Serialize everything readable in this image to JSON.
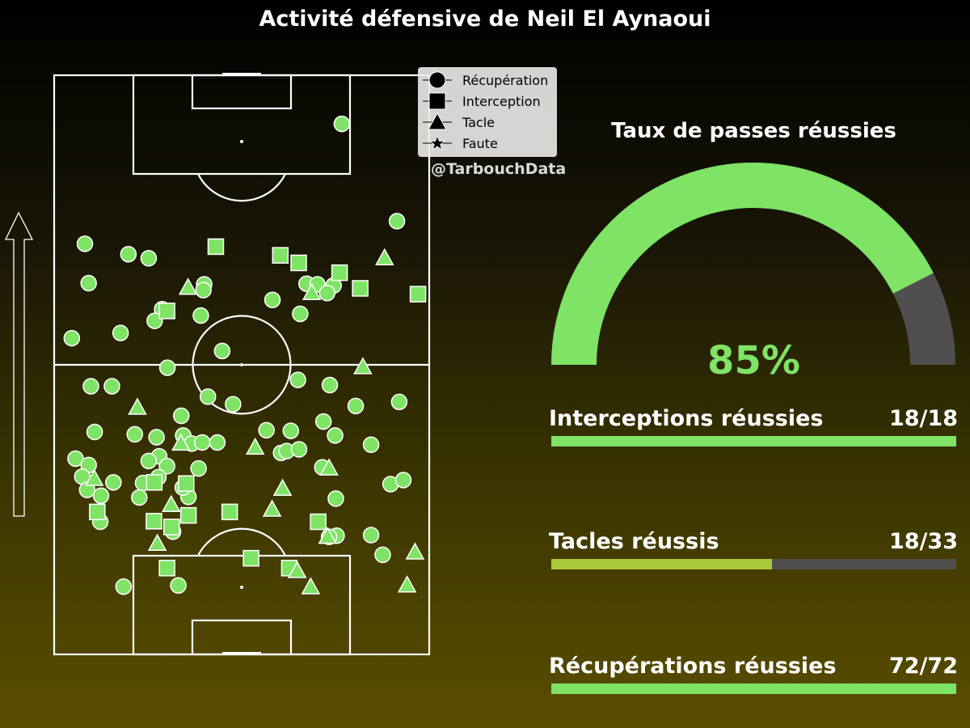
{
  "title": "Activité défensive de Neil El Aynaoui",
  "watermark": "@TarbouchData",
  "legend": [
    {
      "label": "Récupération",
      "marker": "circle"
    },
    {
      "label": "Interception",
      "marker": "square"
    },
    {
      "label": "Tacle",
      "marker": "triangle"
    },
    {
      "label": "Faute",
      "marker": "star"
    }
  ],
  "colors": {
    "accent": "#7fe365",
    "partial": "#a8c93a",
    "track": "#4f4f4f",
    "line": "#ffffff"
  },
  "gauge": {
    "title": "Taux de passes réussies",
    "value": 85,
    "label": "85%"
  },
  "stats": [
    {
      "label": "Interceptions réussies",
      "value": "18/18",
      "success": 18,
      "total": 18,
      "color": "#7fe365"
    },
    {
      "label": "Tacles réussis",
      "value": "18/33",
      "success": 18,
      "total": 33,
      "color": "#a8c93a"
    },
    {
      "label": "Récupérations réussies",
      "value": "72/72",
      "success": 72,
      "total": 72,
      "color": "#7fe365"
    }
  ],
  "chart_data": {
    "type": "scatter",
    "title": "Activité défensive de Neil El Aynaoui",
    "xlim": [
      0,
      100
    ],
    "ylim": [
      0,
      100
    ],
    "note": "x = width of pitch (left to right), y = length of pitch (0 = own goal line at bottom, 100 = opponent goal line at top); attacking direction upward",
    "series": [
      {
        "name": "Récupération",
        "marker": "circle",
        "points": [
          [
            76.7,
            91.6
          ],
          [
            91.4,
            74.8
          ],
          [
            8.2,
            70.9
          ],
          [
            19.8,
            69.1
          ],
          [
            25.2,
            68.4
          ],
          [
            9.2,
            64.1
          ],
          [
            40.0,
            63.9
          ],
          [
            39.8,
            62.9
          ],
          [
            58.2,
            61.2
          ],
          [
            67.3,
            64.0
          ],
          [
            70.2,
            63.9
          ],
          [
            74.5,
            63.7
          ],
          [
            28.8,
            59.6
          ],
          [
            26.8,
            57.6
          ],
          [
            39.1,
            58.5
          ],
          [
            65.6,
            58.8
          ],
          [
            4.7,
            54.6
          ],
          [
            17.7,
            55.5
          ],
          [
            44.8,
            52.4
          ],
          [
            30.2,
            49.5
          ],
          [
            9.8,
            46.3
          ],
          [
            15.4,
            46.3
          ],
          [
            65.0,
            47.4
          ],
          [
            73.5,
            46.5
          ],
          [
            41.0,
            44.5
          ],
          [
            47.7,
            43.2
          ],
          [
            80.4,
            42.9
          ],
          [
            92.0,
            43.6
          ],
          [
            33.9,
            41.2
          ],
          [
            10.8,
            38.4
          ],
          [
            21.5,
            38.0
          ],
          [
            56.6,
            38.7
          ],
          [
            63.1,
            38.6
          ],
          [
            71.8,
            40.2
          ],
          [
            74.9,
            37.8
          ],
          [
            84.5,
            36.2
          ],
          [
            5.7,
            33.8
          ],
          [
            27.3,
            37.5
          ],
          [
            34.4,
            37.8
          ],
          [
            36.7,
            36.4
          ],
          [
            39.5,
            36.6
          ],
          [
            43.5,
            36.6
          ],
          [
            60.5,
            34.8
          ],
          [
            62.0,
            35.1
          ],
          [
            65.3,
            35.4
          ],
          [
            28.0,
            34.2
          ],
          [
            30.1,
            32.5
          ],
          [
            9.2,
            32.7
          ],
          [
            7.5,
            30.7
          ],
          [
            15.8,
            29.7
          ],
          [
            8.8,
            28.4
          ],
          [
            23.7,
            29.6
          ],
          [
            38.5,
            32.1
          ],
          [
            71.5,
            32.3
          ],
          [
            89.7,
            29.4
          ],
          [
            93.1,
            30.1
          ],
          [
            22.7,
            27.1
          ],
          [
            35.8,
            27.2
          ],
          [
            75.1,
            26.9
          ],
          [
            12.3,
            22.9
          ],
          [
            31.7,
            21.2
          ],
          [
            75.3,
            20.5
          ],
          [
            73.3,
            20.3
          ],
          [
            84.5,
            20.6
          ],
          [
            87.6,
            17.2
          ],
          [
            33.1,
            11.9
          ],
          [
            18.5,
            11.7
          ],
          [
            12.5,
            27.4
          ],
          [
            34.3,
            28.8
          ],
          [
            27.8,
            30.6
          ],
          [
            25.2,
            33.4
          ],
          [
            72.8,
            62.4
          ]
        ]
      },
      {
        "name": "Interception",
        "marker": "square",
        "points": [
          [
            43.1,
            70.4
          ],
          [
            60.3,
            68.9
          ],
          [
            65.2,
            67.6
          ],
          [
            76.1,
            65.9
          ],
          [
            81.6,
            63.2
          ],
          [
            97.0,
            62.2
          ],
          [
            30.1,
            59.3
          ],
          [
            26.7,
            29.7
          ],
          [
            35.2,
            29.5
          ],
          [
            11.5,
            24.6
          ],
          [
            35.8,
            24.0
          ],
          [
            46.8,
            24.6
          ],
          [
            26.6,
            23.0
          ],
          [
            31.3,
            22.0
          ],
          [
            70.4,
            22.9
          ],
          [
            52.5,
            16.6
          ],
          [
            30.1,
            14.9
          ],
          [
            62.7,
            14.9
          ]
        ]
      },
      {
        "name": "Tacle",
        "marker": "triangle",
        "points": [
          [
            88.1,
            68.4
          ],
          [
            35.7,
            63.3
          ],
          [
            68.7,
            62.4
          ],
          [
            82.3,
            49.6
          ],
          [
            22.2,
            42.6
          ],
          [
            33.8,
            36.4
          ],
          [
            53.6,
            35.7
          ],
          [
            73.3,
            32.1
          ],
          [
            10.7,
            30.3
          ],
          [
            60.9,
            28.6
          ],
          [
            31.2,
            25.8
          ],
          [
            58.1,
            25.0
          ],
          [
            72.9,
            20.3
          ],
          [
            27.5,
            19.1
          ],
          [
            96.2,
            17.6
          ],
          [
            64.8,
            14.4
          ],
          [
            68.4,
            11.6
          ],
          [
            94.1,
            11.9
          ]
        ]
      },
      {
        "name": "Faute",
        "marker": "star",
        "points": []
      }
    ]
  }
}
